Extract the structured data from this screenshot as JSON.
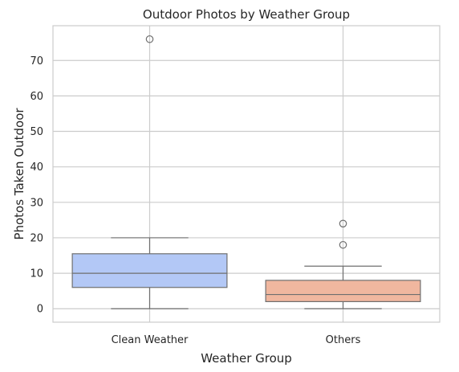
{
  "chart_data": {
    "type": "box",
    "title": "Outdoor Photos by Weather Group",
    "xlabel": "Weather Group",
    "ylabel": "Photos Taken Outdoor",
    "ylim": [
      -3.8,
      79.8
    ],
    "yticks": [
      0,
      10,
      20,
      30,
      40,
      50,
      60,
      70
    ],
    "grid": true,
    "categories": [
      "Clean Weather",
      "Others"
    ],
    "boxes": [
      {
        "category": "Clean Weather",
        "whisker_low": 0,
        "q1": 6,
        "median": 10,
        "q3": 15.5,
        "whisker_high": 20,
        "outliers": [
          76
        ],
        "color": "#b3c8f6"
      },
      {
        "category": "Others",
        "whisker_low": 0,
        "q1": 2,
        "median": 4,
        "q3": 8,
        "whisker_high": 12,
        "outliers": [
          18,
          24
        ],
        "color": "#f0b79f"
      }
    ],
    "line_color": "#6f6f6f",
    "grid_color": "#cccccc",
    "spine_color": "#cccccc"
  }
}
